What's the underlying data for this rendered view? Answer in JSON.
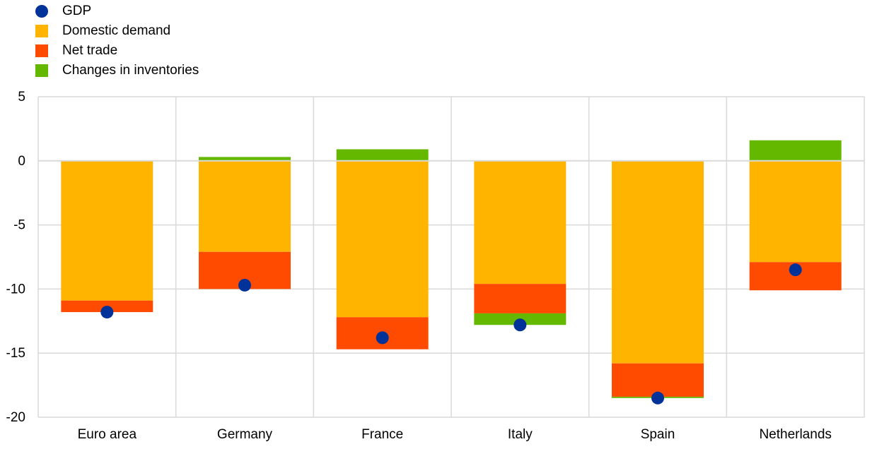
{
  "chart_data": {
    "type": "bar",
    "stacked": true,
    "categories": [
      "Euro area",
      "Germany",
      "France",
      "Italy",
      "Spain",
      "Netherlands"
    ],
    "series": [
      {
        "name": "Domestic demand",
        "kind": "bar",
        "color": "#FFB400",
        "values": [
          -10.9,
          -7.1,
          -12.2,
          -9.6,
          -15.8,
          -7.9
        ]
      },
      {
        "name": "Net trade",
        "kind": "bar",
        "color": "#FF4B00",
        "values": [
          -0.9,
          -2.9,
          -2.5,
          -2.3,
          -2.6,
          -2.2
        ]
      },
      {
        "name": "Changes in inventories",
        "kind": "bar",
        "color": "#65B800",
        "values": [
          0.0,
          0.3,
          0.9,
          -0.9,
          -0.1,
          1.6
        ]
      },
      {
        "name": "GDP",
        "kind": "marker",
        "color": "#003299",
        "values": [
          -11.8,
          -9.7,
          -13.8,
          -12.8,
          -18.5,
          -8.5
        ]
      }
    ],
    "legend_order": [
      "GDP",
      "Domestic demand",
      "Net trade",
      "Changes in inventories"
    ],
    "legend_position": "top-left",
    "y_ticks": [
      5,
      0,
      -5,
      -10,
      -15,
      -20
    ],
    "ylim": [
      -20,
      5
    ],
    "grid": true
  }
}
